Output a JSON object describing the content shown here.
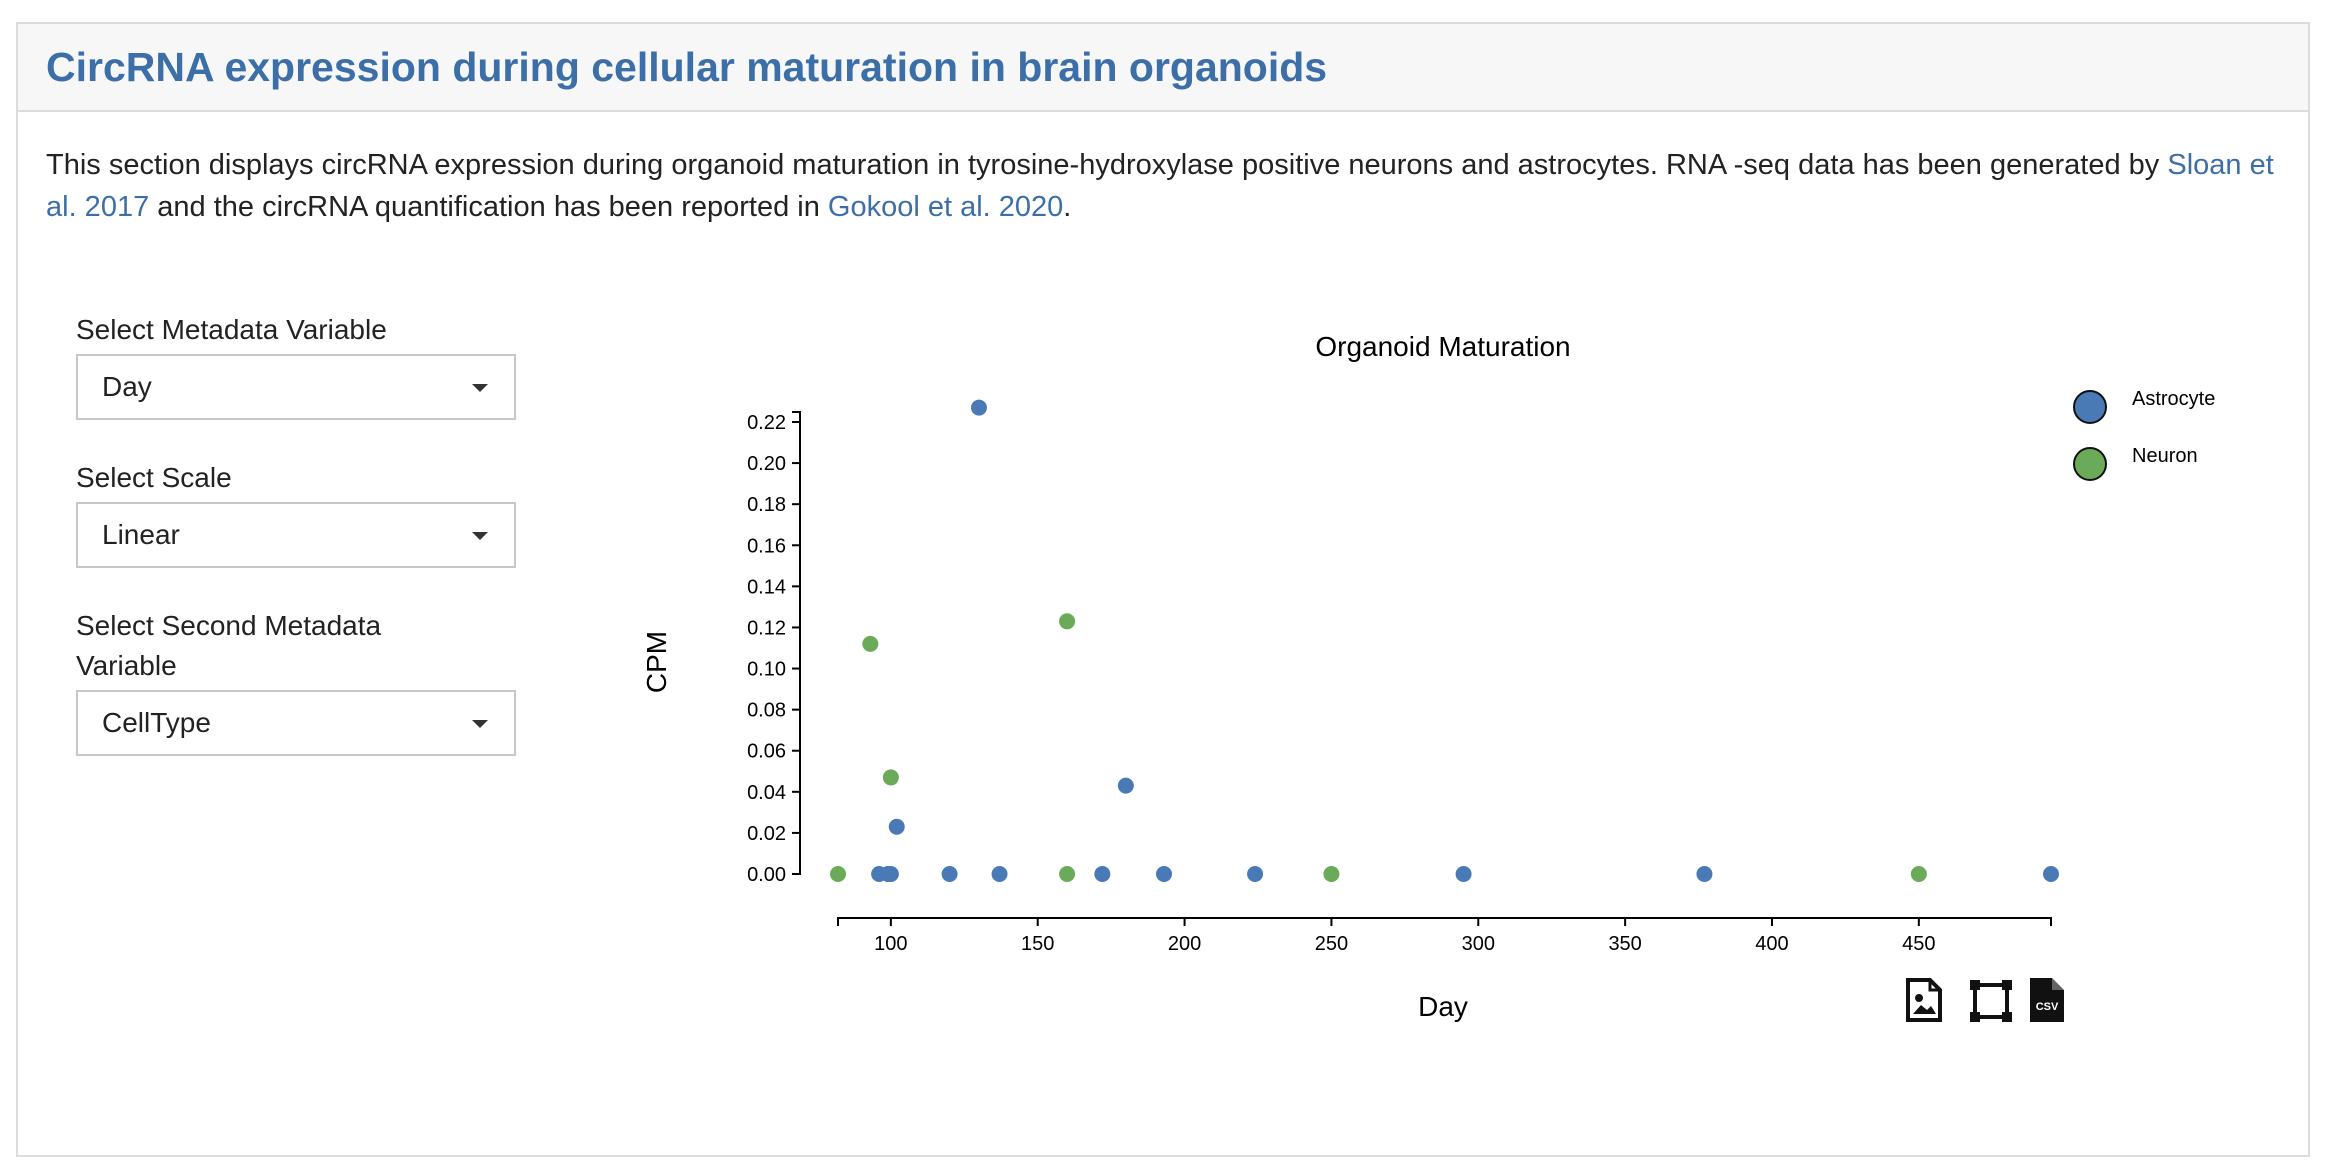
{
  "header": {
    "title": "CircRNA expression during cellular maturation in brain organoids"
  },
  "intro": {
    "text_before": "This section displays circRNA expression during organoid maturation in tyrosine-hydroxylase positive neurons and astrocytes. RNA -seq data has been generated by ",
    "link1": "Sloan et al. 2017",
    "text_middle": " and the circRNA quantification has been reported in ",
    "link2": "Gokool et al. 2020",
    "text_after": "."
  },
  "controls": {
    "metadata": {
      "label": "Select Metadata Variable",
      "value": "Day"
    },
    "scale": {
      "label": "Select Scale",
      "value": "Linear"
    },
    "second": {
      "label": "Select Second Metadata Variable",
      "value": "CellType"
    }
  },
  "chart_data": {
    "type": "scatter",
    "title": "Organoid Maturation",
    "xlabel": "Day",
    "ylabel": "CPM",
    "xlim": [
      82,
      495
    ],
    "ylim": [
      0,
      0.22
    ],
    "x_ticks": [
      100,
      150,
      200,
      250,
      300,
      350,
      400,
      450
    ],
    "x_tick_labels": [
      "100",
      "150",
      "200",
      "250",
      "300",
      "350",
      "400",
      "450"
    ],
    "y_ticks": [
      0,
      0.02,
      0.04,
      0.06,
      0.08,
      0.1,
      0.12,
      0.14,
      0.16,
      0.18,
      0.2,
      0.22
    ],
    "y_tick_labels": [
      "0.00",
      "0.02",
      "0.04",
      "0.06",
      "0.08",
      "0.10",
      "0.12",
      "0.14",
      "0.16",
      "0.18",
      "0.20",
      "0.22"
    ],
    "legend_position": "top-right",
    "series": [
      {
        "name": "Astrocyte",
        "color": "#4a7ab5",
        "points": [
          [
            96,
            0
          ],
          [
            99,
            0
          ],
          [
            100,
            0
          ],
          [
            102,
            0.023
          ],
          [
            120,
            0
          ],
          [
            130,
            0.227
          ],
          [
            137,
            0
          ],
          [
            172,
            0
          ],
          [
            180,
            0.043
          ],
          [
            193,
            0
          ],
          [
            224,
            0
          ],
          [
            295,
            0
          ],
          [
            377,
            0
          ],
          [
            495,
            0
          ]
        ]
      },
      {
        "name": "Neuron",
        "color": "#6aaa58",
        "points": [
          [
            82,
            0
          ],
          [
            93,
            0.112
          ],
          [
            100,
            0.047
          ],
          [
            160,
            0.123
          ],
          [
            160,
            0
          ],
          [
            250,
            0
          ],
          [
            450,
            0
          ]
        ]
      }
    ]
  },
  "toolbar": {
    "icons": [
      "download-image-icon",
      "select-box-icon",
      "csv-download-icon"
    ],
    "csv_text": "CSV"
  }
}
